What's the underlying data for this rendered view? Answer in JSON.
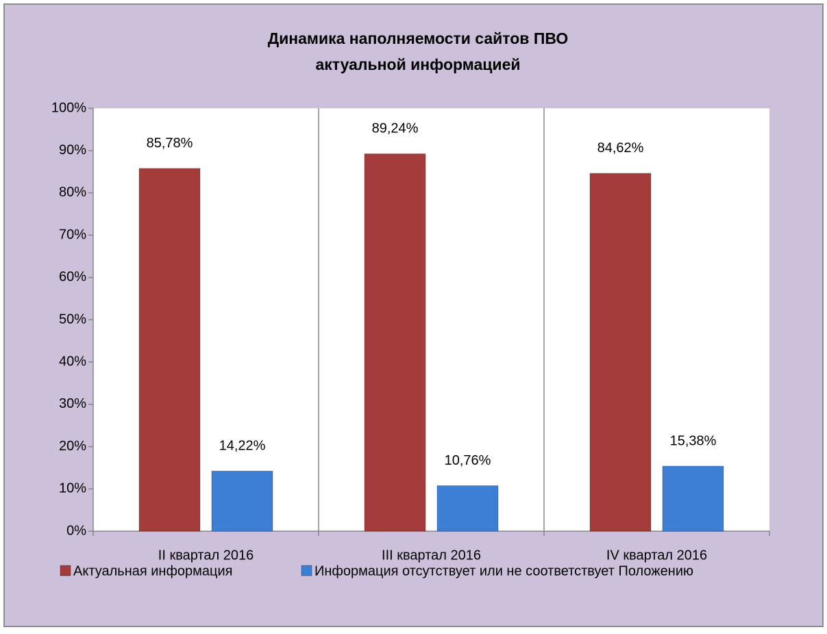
{
  "chart_data": {
    "type": "bar",
    "title": [
      "Динамика наполняемости сайтов ПВО",
      "актуальной информацией"
    ],
    "categories": [
      "II квартал 2016",
      "III квартал 2016",
      "IV квартал 2016"
    ],
    "series": [
      {
        "name": "Актуальная информация",
        "color": "#a33c3a",
        "values": [
          85.78,
          89.24,
          84.62
        ],
        "value_labels": [
          "85,78%",
          "89,24%",
          "84,62%"
        ]
      },
      {
        "name": "Информация отсутствует или не соответствует Положению",
        "color": "#3d7fd4",
        "values": [
          14.22,
          10.76,
          15.38
        ],
        "value_labels": [
          "14,22%",
          "10,76%",
          "15,38%"
        ]
      }
    ],
    "ylim": [
      0,
      100
    ],
    "yticks": [
      {
        "value": 0,
        "label": "0%"
      },
      {
        "value": 10,
        "label": "10%"
      },
      {
        "value": 20,
        "label": "20%"
      },
      {
        "value": 30,
        "label": "30%"
      },
      {
        "value": 40,
        "label": "40%"
      },
      {
        "value": 50,
        "label": "50%"
      },
      {
        "value": 60,
        "label": "60%"
      },
      {
        "value": 70,
        "label": "70%"
      },
      {
        "value": 80,
        "label": "80%"
      },
      {
        "value": 90,
        "label": "90%"
      },
      {
        "value": 100,
        "label": "100%"
      }
    ],
    "grid": false,
    "legend": "bottom"
  }
}
